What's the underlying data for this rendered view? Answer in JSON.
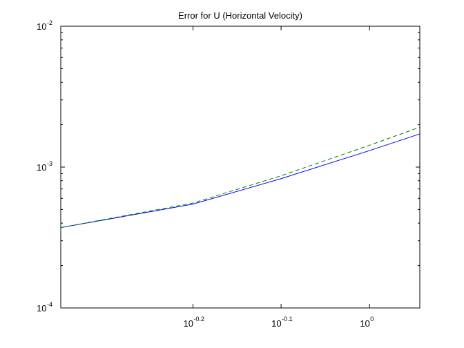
{
  "chart_data": {
    "type": "line",
    "title": "Error for U (Horizontal Velocity)",
    "xlabel": "",
    "ylabel": "",
    "x_scale": "log",
    "y_scale": "log",
    "xlim": [
      0.447,
      1.14
    ],
    "ylim": [
      0.0001,
      0.01
    ],
    "grid": false,
    "x_ticks": [
      {
        "value": 0.631,
        "base": "10",
        "exponent": "-0.2"
      },
      {
        "value": 0.794,
        "base": "10",
        "exponent": "-0.1"
      },
      {
        "value": 1.0,
        "base": "10",
        "exponent": "0"
      }
    ],
    "y_ticks": [
      {
        "value": 0.0001,
        "base": "10",
        "exponent": "-4"
      },
      {
        "value": 0.001,
        "base": "10",
        "exponent": "-3"
      },
      {
        "value": 0.01,
        "base": "10",
        "exponent": "-2"
      }
    ],
    "series": [
      {
        "color": "#0000ff",
        "style": "solid",
        "x": [
          0.447,
          0.631,
          0.794,
          1.0,
          1.14
        ],
        "y": [
          0.000372,
          0.000546,
          0.000828,
          0.00131,
          0.00172
        ]
      },
      {
        "color": "#008000",
        "style": "dashed",
        "x": [
          0.447,
          0.631,
          0.794,
          1.0,
          1.14
        ],
        "y": [
          0.000372,
          0.000556,
          0.000868,
          0.00143,
          0.00192
        ]
      }
    ]
  }
}
